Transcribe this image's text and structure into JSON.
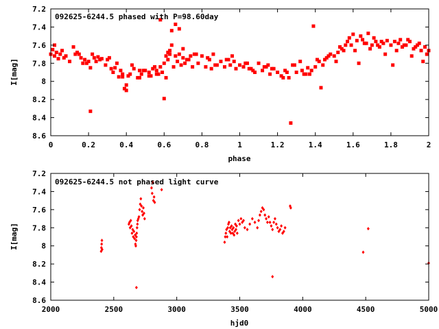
{
  "colors": {
    "point": "#ff0000",
    "axis": "#000000",
    "background": "#ffffff"
  },
  "chart_data": [
    {
      "type": "scatter",
      "title": "092625-6244.5 phased with P=98.60day",
      "xlabel": "phase",
      "ylabel": "I[mag]",
      "xlim": [
        0,
        2
      ],
      "ylim": [
        7.2,
        8.6
      ],
      "y_inverted": true,
      "xticks": [
        "0",
        "0.2",
        "0.4",
        "0.6",
        "0.8",
        "1",
        "1.2",
        "1.4",
        "1.6",
        "1.8",
        "2"
      ],
      "yticks": [
        "7.2",
        "7.4",
        "7.6",
        "7.8",
        "8",
        "8.2",
        "8.4",
        "8.6"
      ],
      "grid": false,
      "marker": "filled-square",
      "series": [
        {
          "x": [
            0.0,
            0.01,
            0.02,
            0.03,
            0.04,
            0.05,
            0.06,
            0.08,
            0.1,
            0.12,
            0.14,
            0.15,
            0.16,
            0.17,
            0.18,
            0.2,
            0.21,
            0.22,
            0.23,
            0.24,
            0.25,
            0.27,
            0.29,
            0.3,
            0.31,
            0.33,
            0.34,
            0.35,
            0.36,
            0.37,
            0.38,
            0.39,
            0.4,
            0.41,
            0.42,
            0.44,
            0.46,
            0.47,
            0.48,
            0.5,
            0.52,
            0.54,
            0.56,
            0.57,
            0.58,
            0.59,
            0.6,
            0.61,
            0.62,
            0.63,
            0.64,
            0.65,
            0.66,
            0.67,
            0.68,
            0.69,
            0.7,
            0.71,
            0.72,
            0.74,
            0.76,
            0.78,
            0.8,
            0.82,
            0.84,
            0.86,
            0.88,
            0.9,
            0.92,
            0.94,
            0.96,
            0.98,
            1.0,
            1.02,
            1.04,
            1.06,
            1.08,
            1.1,
            1.12,
            1.14,
            1.16,
            1.18,
            1.2,
            1.22,
            1.24,
            1.26,
            1.28,
            1.3,
            1.32,
            1.34,
            1.36,
            1.38,
            1.4,
            1.42,
            1.44,
            1.46,
            1.48,
            1.5,
            1.52,
            1.54,
            1.56,
            1.57,
            1.58,
            1.59,
            1.6,
            1.62,
            1.64,
            1.66,
            1.68,
            1.7,
            1.72,
            1.74,
            1.76,
            1.78,
            1.8,
            1.82,
            1.84,
            1.86,
            1.88,
            1.9,
            1.92,
            1.94,
            1.96,
            1.98,
            2.0,
            0.21,
            0.6,
            0.58,
            0.66,
            0.68,
            0.64,
            1.27,
            1.39,
            1.43,
            0.38,
            0.4,
            0.47,
            0.52,
            0.56,
            0.62,
            0.7,
            0.75,
            0.85,
            0.95,
            1.05,
            1.15,
            1.25,
            1.35,
            1.45,
            1.55,
            1.65,
            1.75,
            1.85,
            1.95,
            0.02,
            0.07,
            0.13,
            0.19,
            0.26,
            0.32,
            0.43,
            0.49,
            0.53,
            0.55,
            0.61,
            0.63,
            0.73,
            0.77,
            0.83,
            0.87,
            0.93,
            0.97,
            1.03,
            1.07,
            1.13,
            1.17,
            1.23,
            1.29,
            1.33,
            1.37,
            1.41,
            1.47,
            1.51,
            1.53,
            1.61,
            1.63,
            1.67,
            1.69,
            1.71,
            1.73,
            1.77,
            1.81,
            1.83,
            1.87,
            1.89,
            1.91,
            1.93,
            1.97,
            1.99
          ],
          "y": [
            7.7,
            7.65,
            7.72,
            7.68,
            7.75,
            7.7,
            7.66,
            7.72,
            7.78,
            7.62,
            7.68,
            7.7,
            7.74,
            7.8,
            7.76,
            7.78,
            7.85,
            7.7,
            7.74,
            7.78,
            7.73,
            7.75,
            7.82,
            7.76,
            7.74,
            7.9,
            7.85,
            7.8,
            7.95,
            7.88,
            7.92,
            8.08,
            8.04,
            7.94,
            7.92,
            7.86,
            7.96,
            7.88,
            7.92,
            7.88,
            7.9,
            7.86,
            7.88,
            7.92,
            7.84,
            7.9,
            7.8,
            7.72,
            7.76,
            7.7,
            7.6,
            7.84,
            7.72,
            7.78,
            7.7,
            7.82,
            7.74,
            7.8,
            7.76,
            7.72,
            7.7,
            7.8,
            7.72,
            7.84,
            7.76,
            7.7,
            7.82,
            7.78,
            7.84,
            7.76,
            7.72,
            7.86,
            7.82,
            7.84,
            7.8,
            7.86,
            7.9,
            7.8,
            7.88,
            7.84,
            7.92,
            7.86,
            7.9,
            7.94,
            7.88,
            7.96,
            7.82,
            7.9,
            7.78,
            7.92,
            7.85,
            7.88,
            7.84,
            7.78,
            7.82,
            7.74,
            7.7,
            7.72,
            7.68,
            7.64,
            7.6,
            7.56,
            7.52,
            7.6,
            7.48,
            7.55,
            7.5,
            7.58,
            7.47,
            7.6,
            7.56,
            7.62,
            7.58,
            7.55,
            7.6,
            7.56,
            7.58,
            7.62,
            7.6,
            7.56,
            7.64,
            7.6,
            7.66,
            7.62,
            7.66,
            8.33,
            8.19,
            7.32,
            7.37,
            7.42,
            7.44,
            8.46,
            7.39,
            8.07,
            7.95,
            8.1,
            7.96,
            7.94,
            7.92,
            7.68,
            7.64,
            7.84,
            7.86,
            7.82,
            7.86,
            7.82,
            7.9,
            7.92,
            7.76,
            7.66,
            7.54,
            7.56,
            7.54,
            7.58,
            7.6,
            7.74,
            7.7,
            7.8,
            7.76,
            7.86,
            7.82,
            7.88,
            7.94,
            7.84,
            7.96,
            7.66,
            7.76,
            7.7,
            7.74,
            7.82,
            7.76,
            7.78,
            7.8,
            7.88,
            7.84,
            7.86,
            7.96,
            7.82,
            7.88,
            7.92,
            7.76,
            7.72,
            7.78,
            7.62,
            7.66,
            7.8,
            7.58,
            7.64,
            7.52,
            7.6,
            7.7,
            7.82,
            7.66,
            7.6,
            7.54,
            7.72,
            7.62,
            7.78,
            7.7
          ]
        }
      ]
    },
    {
      "type": "scatter",
      "title": "092625-6244.5 not phased light curve",
      "xlabel": "hjd0",
      "ylabel": "I[mag]",
      "xlim": [
        2000,
        5000
      ],
      "ylim": [
        7.2,
        8.6
      ],
      "y_inverted": true,
      "xticks": [
        "2000",
        "2500",
        "3000",
        "3500",
        "4000",
        "4500",
        "5000"
      ],
      "yticks": [
        "7.2",
        "7.4",
        "7.6",
        "7.8",
        "8",
        "8.2",
        "8.4",
        "8.6"
      ],
      "grid": false,
      "marker": "small-diamond",
      "series": [
        {
          "x": [
            2400,
            2402,
            2404,
            2406,
            2408,
            2620,
            2625,
            2630,
            2635,
            2640,
            2645,
            2650,
            2655,
            2660,
            2665,
            2670,
            2672,
            2675,
            2678,
            2680,
            2682,
            2685,
            2688,
            2690,
            2695,
            2700,
            2705,
            2710,
            2715,
            2720,
            2725,
            2730,
            2735,
            2740,
            2745,
            2680,
            2800,
            2805,
            2810,
            2815,
            2820,
            2825,
            2880,
            3380,
            3385,
            3390,
            3395,
            3400,
            3405,
            3410,
            3415,
            3420,
            3425,
            3430,
            3435,
            3440,
            3445,
            3450,
            3455,
            3460,
            3465,
            3470,
            3475,
            3480,
            3490,
            3500,
            3510,
            3520,
            3530,
            3540,
            3560,
            3580,
            3600,
            3620,
            3640,
            3650,
            3660,
            3670,
            3680,
            3690,
            3700,
            3710,
            3720,
            3730,
            3740,
            3750,
            3760,
            3770,
            3780,
            3790,
            3800,
            3810,
            3820,
            3830,
            3840,
            3850,
            3860,
            3760,
            3900,
            3905,
            4480,
            4520,
            5000
          ],
          "y": [
            8.06,
            8.02,
            7.98,
            7.94,
            8.04,
            7.76,
            7.74,
            7.8,
            7.72,
            7.78,
            7.86,
            7.82,
            7.9,
            7.84,
            7.92,
            7.88,
            7.98,
            8.0,
            7.94,
            7.9,
            7.86,
            7.8,
            7.76,
            7.72,
            7.7,
            7.68,
            7.6,
            7.54,
            7.48,
            7.56,
            7.62,
            7.66,
            7.58,
            7.64,
            7.7,
            8.46,
            7.36,
            7.42,
            7.3,
            7.5,
            7.46,
            7.52,
            7.38,
            7.96,
            7.9,
            7.86,
            7.82,
            7.9,
            7.8,
            7.76,
            7.74,
            7.84,
            7.8,
            7.86,
            7.78,
            7.82,
            7.86,
            7.8,
            7.88,
            7.84,
            7.76,
            7.82,
            7.78,
            7.86,
            7.72,
            7.76,
            7.7,
            7.74,
            7.72,
            7.8,
            7.82,
            7.76,
            7.7,
            7.74,
            7.8,
            7.72,
            7.66,
            7.62,
            7.58,
            7.6,
            7.66,
            7.7,
            7.74,
            7.68,
            7.74,
            7.78,
            7.82,
            7.74,
            7.7,
            7.76,
            7.8,
            7.84,
            7.82,
            7.78,
            7.86,
            7.84,
            7.8,
            8.34,
            7.56,
            7.58,
            8.07,
            7.81,
            8.19
          ]
        }
      ]
    }
  ]
}
